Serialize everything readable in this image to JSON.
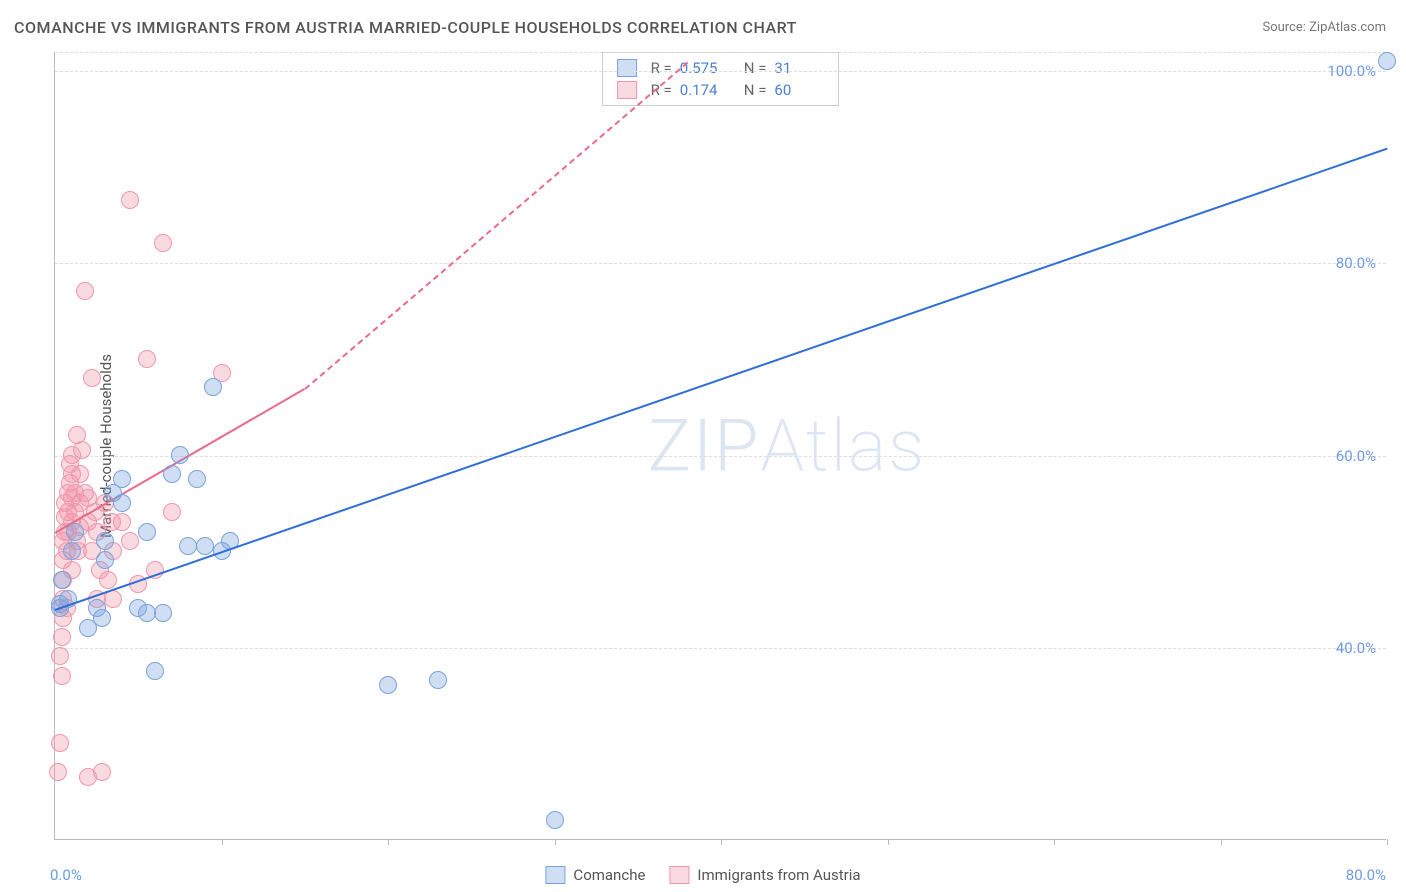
{
  "title": "COMANCHE VS IMMIGRANTS FROM AUSTRIA MARRIED-COUPLE HOUSEHOLDS CORRELATION CHART",
  "source": "Source: ZipAtlas.com",
  "watermark": "ZIPAtlas",
  "y_axis_title": "Married-couple Households",
  "chart": {
    "type": "scatter",
    "xlim": [
      0,
      80
    ],
    "ylim": [
      20,
      102
    ],
    "x_min_label": "0.0%",
    "x_max_label": "80.0%",
    "y_ticks": [
      40,
      60,
      80,
      100
    ],
    "y_tick_labels": [
      "40.0%",
      "60.0%",
      "80.0%",
      "100.0%"
    ],
    "x_tick_positions": [
      10,
      20,
      30,
      40,
      50,
      60,
      70,
      80
    ],
    "grid_color": "#dddddd",
    "axis_color": "#bbbbbb",
    "tick_label_color": "#6b9be8",
    "point_radius": 9,
    "series": {
      "comanche": {
        "label": "Comanche",
        "fill": "rgba(120,160,220,0.35)",
        "stroke": "#7aa3dd",
        "trend_color": "#2f6fd6",
        "trend_solid": {
          "x1": 0,
          "y1": 44,
          "x2": 80,
          "y2": 92
        },
        "R": "0.575",
        "N": "31",
        "points": [
          [
            0.3,
            44
          ],
          [
            0.3,
            44.5
          ],
          [
            0.4,
            47
          ],
          [
            0.8,
            45
          ],
          [
            1,
            50
          ],
          [
            1.2,
            52
          ],
          [
            2,
            42
          ],
          [
            2.5,
            44
          ],
          [
            2.8,
            43
          ],
          [
            3,
            49
          ],
          [
            3,
            51
          ],
          [
            3.5,
            56
          ],
          [
            4,
            57.5
          ],
          [
            4,
            55
          ],
          [
            5,
            44
          ],
          [
            5.5,
            43.5
          ],
          [
            5.5,
            52
          ],
          [
            6,
            37.5
          ],
          [
            6.5,
            43.5
          ],
          [
            7,
            58
          ],
          [
            7.5,
            60
          ],
          [
            8,
            50.5
          ],
          [
            8.5,
            57.5
          ],
          [
            9,
            50.5
          ],
          [
            9.5,
            67
          ],
          [
            10,
            50
          ],
          [
            10.5,
            51
          ],
          [
            20,
            36
          ],
          [
            23,
            36.5
          ],
          [
            30,
            22
          ],
          [
            80,
            101
          ]
        ]
      },
      "austria": {
        "label": "Immigrants from Austria",
        "fill": "rgba(240,150,170,0.35)",
        "stroke": "#f097ab",
        "trend_color": "#e86b8a",
        "trend_solid": {
          "x1": 0,
          "y1": 52,
          "x2": 15,
          "y2": 67
        },
        "trend_dash": {
          "x1": 15,
          "y1": 67,
          "x2": 38,
          "y2": 101
        },
        "R": "0.174",
        "N": "60",
        "points": [
          [
            0.2,
            27
          ],
          [
            0.3,
            39
          ],
          [
            0.3,
            30
          ],
          [
            0.4,
            37
          ],
          [
            0.4,
            41
          ],
          [
            0.5,
            43
          ],
          [
            0.5,
            45
          ],
          [
            0.5,
            47
          ],
          [
            0.5,
            49
          ],
          [
            0.5,
            51
          ],
          [
            0.6,
            52
          ],
          [
            0.6,
            53.5
          ],
          [
            0.6,
            55
          ],
          [
            0.7,
            50
          ],
          [
            0.7,
            44
          ],
          [
            0.8,
            52
          ],
          [
            0.8,
            54
          ],
          [
            0.8,
            56
          ],
          [
            0.9,
            57
          ],
          [
            0.9,
            59
          ],
          [
            1,
            48
          ],
          [
            1,
            53
          ],
          [
            1,
            55.5
          ],
          [
            1,
            58
          ],
          [
            1,
            60
          ],
          [
            1.2,
            56
          ],
          [
            1.2,
            54
          ],
          [
            1.3,
            51
          ],
          [
            1.3,
            62
          ],
          [
            1.4,
            50
          ],
          [
            1.5,
            52.5
          ],
          [
            1.5,
            55
          ],
          [
            1.5,
            58
          ],
          [
            1.6,
            60.5
          ],
          [
            1.8,
            77
          ],
          [
            1.8,
            56
          ],
          [
            2,
            26.5
          ],
          [
            2,
            53
          ],
          [
            2,
            55.5
          ],
          [
            2.2,
            50
          ],
          [
            2.2,
            68
          ],
          [
            2.4,
            54
          ],
          [
            2.5,
            45
          ],
          [
            2.5,
            52
          ],
          [
            2.7,
            48
          ],
          [
            2.8,
            27
          ],
          [
            3,
            55
          ],
          [
            3.2,
            47
          ],
          [
            3.4,
            53
          ],
          [
            3.5,
            50
          ],
          [
            3.5,
            45
          ],
          [
            4,
            53
          ],
          [
            4.5,
            51
          ],
          [
            4.5,
            86.5
          ],
          [
            5,
            46.5
          ],
          [
            5.5,
            70
          ],
          [
            6,
            48
          ],
          [
            6.5,
            82
          ],
          [
            10,
            68.5
          ],
          [
            7,
            54
          ]
        ]
      }
    }
  }
}
